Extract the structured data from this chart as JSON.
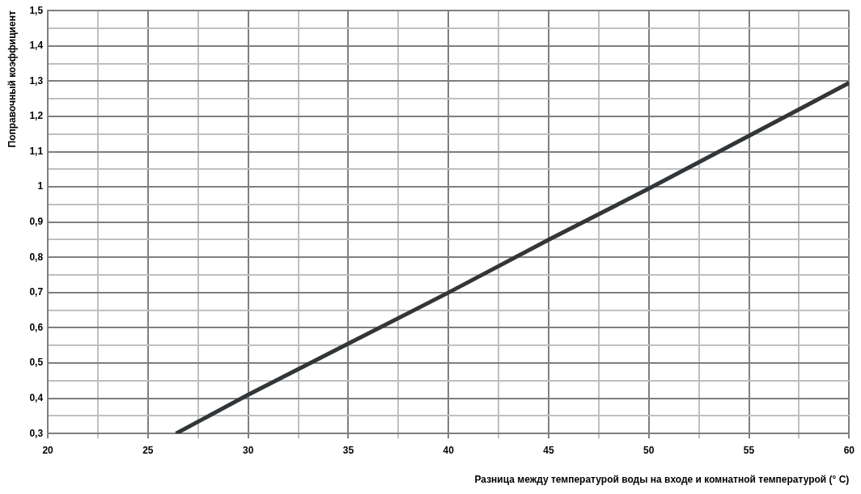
{
  "chart_data": {
    "type": "line",
    "xlabel": "Разница между температурой воды на входе и комнатной температурой (° C)",
    "ylabel": "Поправочный коэффициент",
    "x": [
      26.4,
      30,
      35,
      40,
      45,
      50,
      55,
      60
    ],
    "series": [
      {
        "color": "#333638",
        "values": [
          0.3,
          0.41,
          0.555,
          0.7,
          0.85,
          0.995,
          1.145,
          1.295
        ]
      }
    ],
    "xlim": [
      20,
      60
    ],
    "xticks": [
      20,
      {
        "value": 22.5,
        "label": null
      },
      25,
      {
        "value": 27.5,
        "label": null
      },
      30,
      {
        "value": 32.5,
        "label": null
      },
      35,
      {
        "value": 37.5,
        "label": null
      },
      40,
      {
        "value": 42.5,
        "label": null
      },
      45,
      {
        "value": 47.5,
        "label": null
      },
      50,
      {
        "value": 52.5,
        "label": null
      },
      55,
      {
        "value": 57.5,
        "label": null
      },
      60
    ],
    "ylim": [
      0.3,
      1.5
    ],
    "yticks": [
      {
        "value": 0.3,
        "label": "0,3"
      },
      {
        "value": 0.35,
        "label": null
      },
      {
        "value": 0.4,
        "label": "0,4"
      },
      {
        "value": 0.45,
        "label": null
      },
      {
        "value": 0.5,
        "label": "0,5"
      },
      {
        "value": 0.55,
        "label": null
      },
      {
        "value": 0.6,
        "label": "0,6"
      },
      {
        "value": 0.65,
        "label": null
      },
      {
        "value": 0.7,
        "label": "0,7"
      },
      {
        "value": 0.75,
        "label": null
      },
      {
        "value": 0.8,
        "label": "0,8"
      },
      {
        "value": 0.85,
        "label": null
      },
      {
        "value": 0.9,
        "label": "0,9"
      },
      {
        "value": 0.95,
        "label": null
      },
      1,
      {
        "value": 1.05,
        "label": null
      },
      {
        "value": 1.1,
        "label": "1,1"
      },
      {
        "value": 1.15,
        "label": null
      },
      {
        "value": 1.2,
        "label": "1,2"
      },
      {
        "value": 1.25,
        "label": null
      },
      {
        "value": 1.3,
        "label": "1,3"
      },
      {
        "value": 1.35,
        "label": null
      },
      {
        "value": 1.4,
        "label": "1,4"
      },
      {
        "value": 1.45,
        "label": null
      },
      {
        "value": 1.5,
        "label": "1,5"
      }
    ],
    "grid": true,
    "legend": false,
    "marker": "none",
    "line_style": "solid"
  }
}
